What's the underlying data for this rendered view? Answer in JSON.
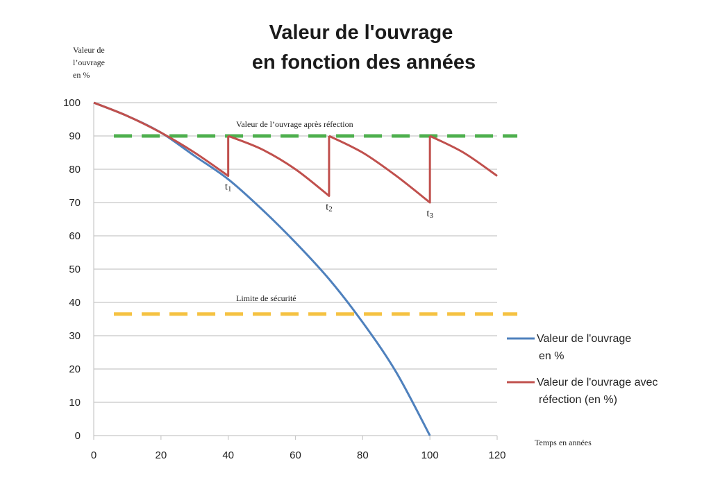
{
  "chart_data": {
    "type": "line",
    "title_line1": "Valeur de l'ouvrage",
    "title_line2": "en fonction des années",
    "ylabel": [
      "Valeur  de",
      "l’ouvrage",
      "en %"
    ],
    "xlabel": "Temps en années",
    "xlim": [
      0,
      120
    ],
    "ylim": [
      0,
      100
    ],
    "x_ticks": [
      "0",
      "20",
      "40",
      "60",
      "80",
      "100",
      "120"
    ],
    "y_ticks": [
      "0",
      "10",
      "20",
      "30",
      "40",
      "50",
      "60",
      "70",
      "80",
      "90",
      "100"
    ],
    "grid": "horizontal",
    "legend_position": "right",
    "series": [
      {
        "name": "Valeur de l'ouvrage en %",
        "legend_lines": [
          "Valeur de l'ouvrage",
          "en %"
        ],
        "color": "#4F81BD",
        "x": [
          0,
          10,
          20,
          30,
          40,
          50,
          60,
          70,
          80,
          90,
          100
        ],
        "y": [
          100,
          96,
          91,
          84,
          77,
          68,
          58,
          47,
          34,
          19,
          0
        ]
      },
      {
        "name": "Valeur de l'ouvrage avec réfection (en %)",
        "legend_lines": [
          "Valeur de l'ouvrage avec",
          "réfection (en %)"
        ],
        "color": "#C0504D",
        "x": [
          0,
          10,
          20,
          30,
          40,
          40,
          50,
          60,
          70,
          70,
          80,
          90,
          100,
          100,
          110,
          120
        ],
        "y": [
          100,
          96,
          91,
          85,
          78,
          90,
          86,
          80,
          72,
          90,
          85,
          78,
          70,
          90,
          85,
          78
        ]
      }
    ],
    "reference_lines": [
      {
        "label": "Valeur de l’ouvrage après réfection",
        "y": 90,
        "color": "#4EAF4E",
        "x_start": 6,
        "x_end": 126
      },
      {
        "label": "Limite de sécurité",
        "y": 36.5,
        "color": "#F5C242",
        "x_start": 6,
        "x_end": 126
      }
    ],
    "annotations": [
      {
        "main": "t",
        "sub": "1",
        "x": 40,
        "y": 78
      },
      {
        "main": "t",
        "sub": "2",
        "x": 70,
        "y": 72
      },
      {
        "main": "t",
        "sub": "3",
        "x": 100,
        "y": 70
      }
    ]
  }
}
